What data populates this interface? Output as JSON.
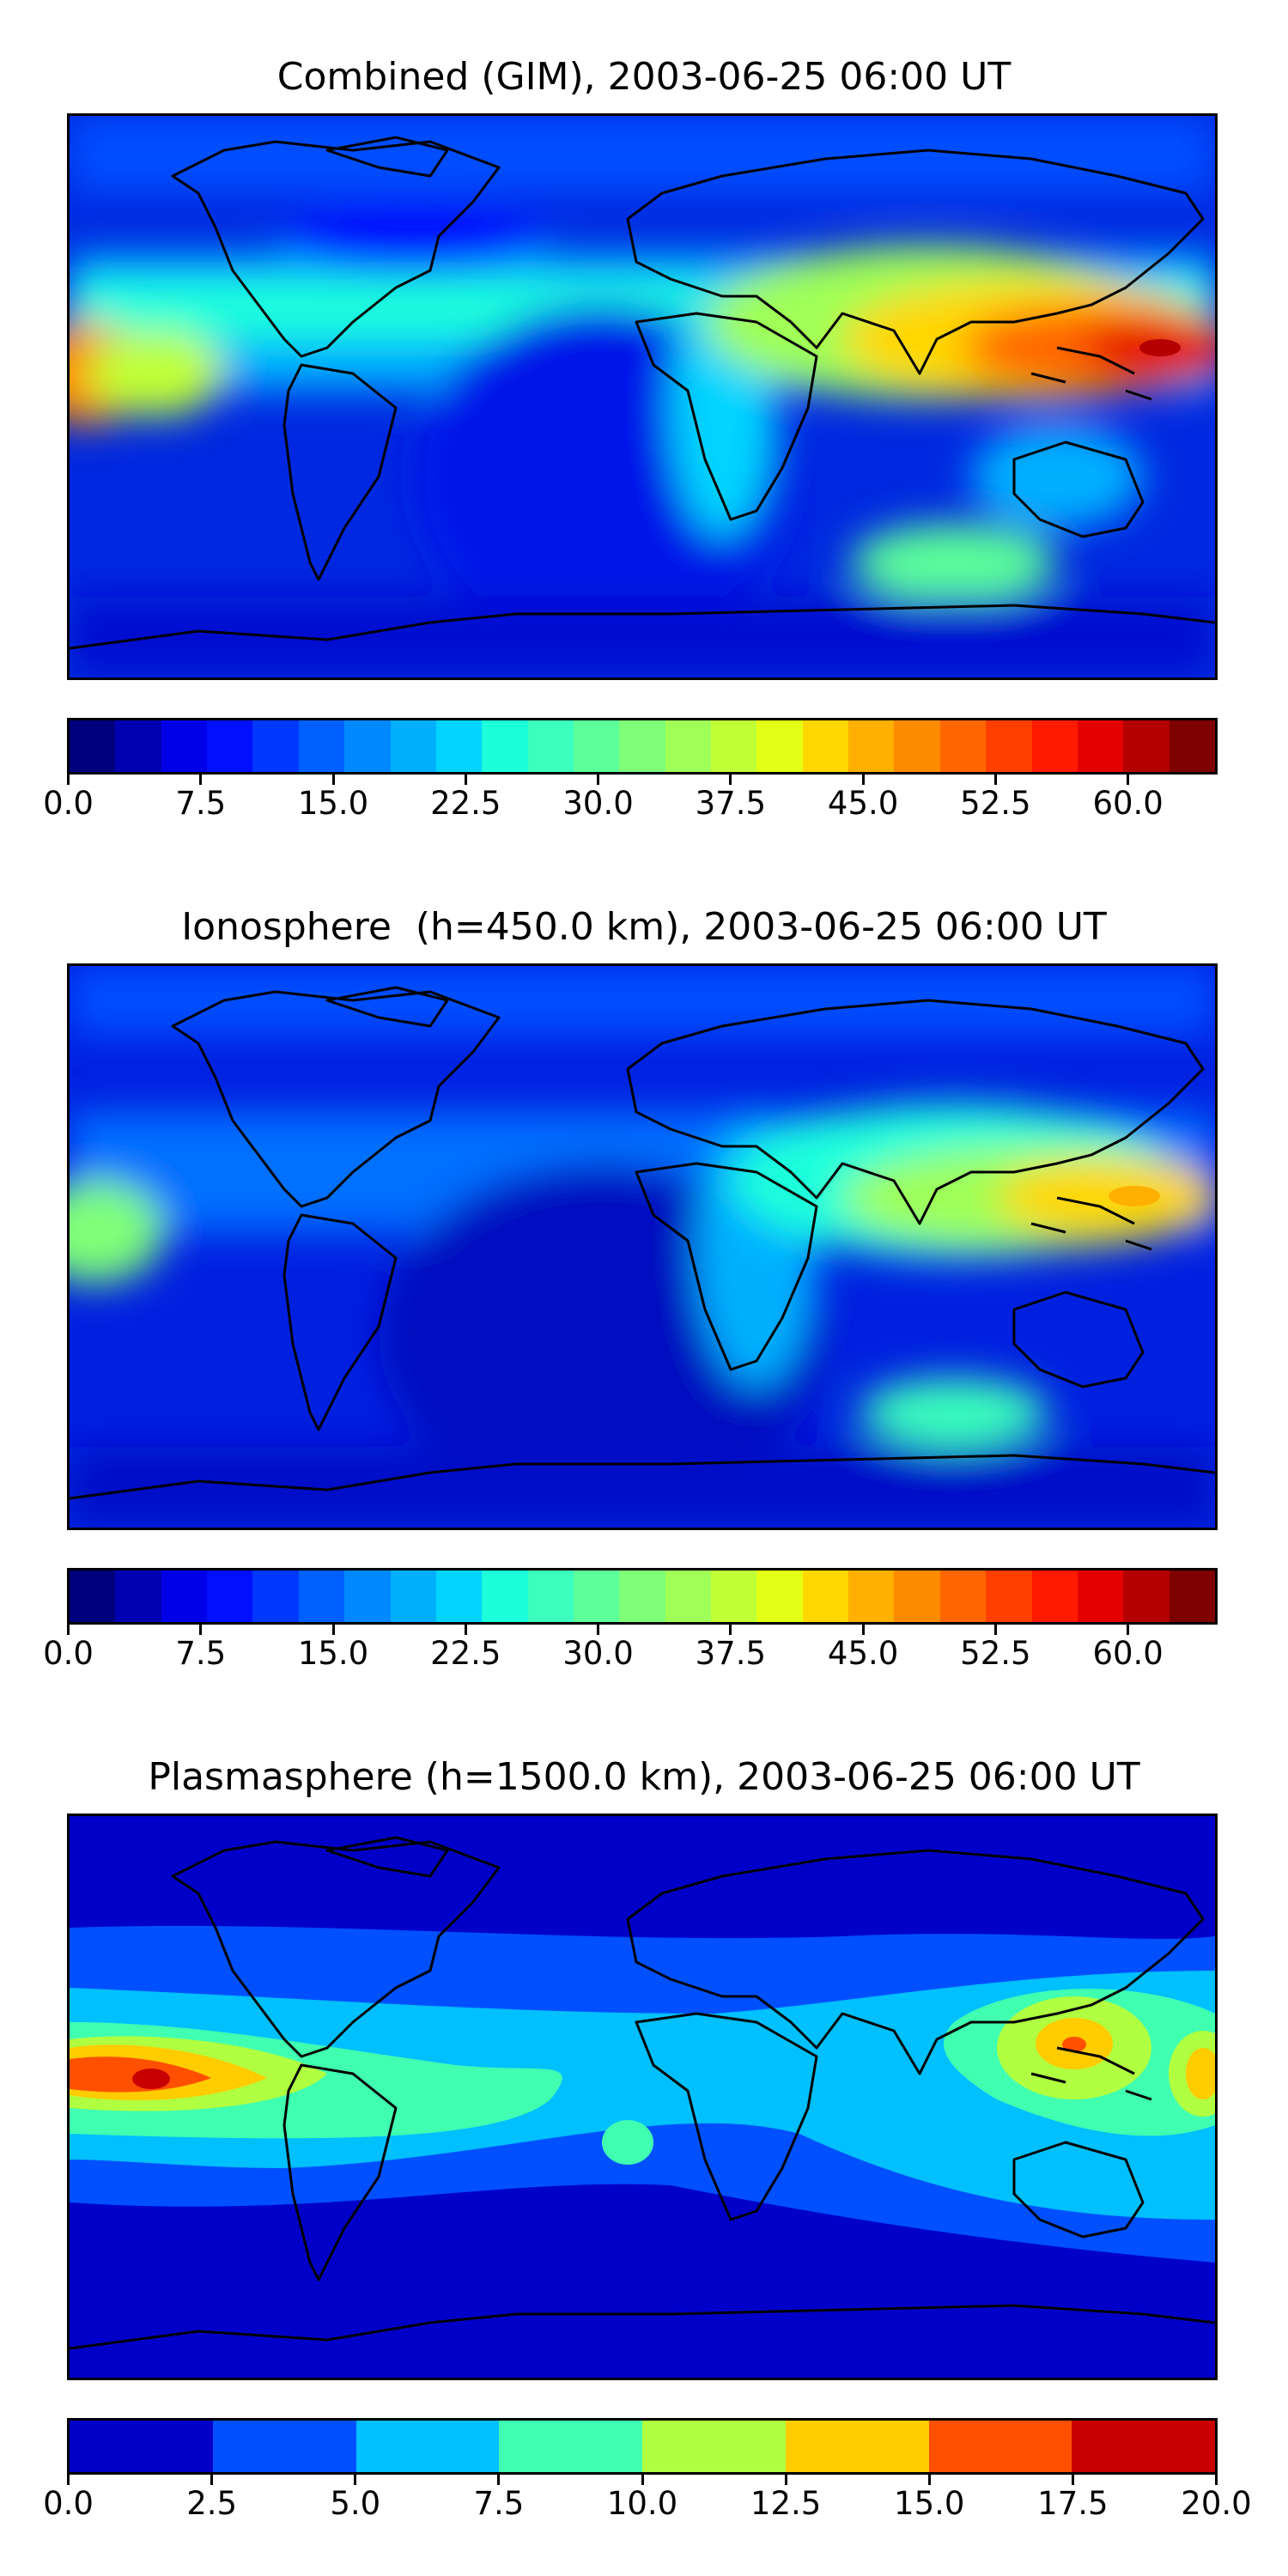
{
  "panels": [
    {
      "title": "Combined (GIM), 2003-06-25 06:00 UT",
      "colorbar": {
        "colors": [
          "#00007f",
          "#0000b0",
          "#0000e8",
          "#0010ff",
          "#0038ff",
          "#0060ff",
          "#0088ff",
          "#00b0ff",
          "#00d4ff",
          "#1cffdb",
          "#3bffbc",
          "#5cff9a",
          "#7fff78",
          "#9fff57",
          "#c0ff36",
          "#e2ff15",
          "#ffd700",
          "#ffb000",
          "#ff8c00",
          "#ff6600",
          "#ff3f00",
          "#ff1a00",
          "#e50000",
          "#b40000",
          "#7f0000"
        ],
        "ticks": [
          "0.0",
          "7.5",
          "15.0",
          "22.5",
          "30.0",
          "37.5",
          "45.0",
          "52.5",
          "60.0"
        ],
        "tick_values": [
          0,
          7.5,
          15,
          22.5,
          30,
          37.5,
          45,
          52.5,
          60
        ],
        "range": [
          0,
          65
        ]
      }
    },
    {
      "title": "Ionosphere  (h=450.0 km), 2003-06-25 06:00 UT",
      "colorbar": {
        "colors": [
          "#00007f",
          "#0000b0",
          "#0000e8",
          "#0010ff",
          "#0038ff",
          "#0060ff",
          "#0088ff",
          "#00b0ff",
          "#00d4ff",
          "#1cffdb",
          "#3bffbc",
          "#5cff9a",
          "#7fff78",
          "#9fff57",
          "#c0ff36",
          "#e2ff15",
          "#ffd700",
          "#ffb000",
          "#ff8c00",
          "#ff6600",
          "#ff3f00",
          "#ff1a00",
          "#e50000",
          "#b40000",
          "#7f0000"
        ],
        "ticks": [
          "0.0",
          "7.5",
          "15.0",
          "22.5",
          "30.0",
          "37.5",
          "45.0",
          "52.5",
          "60.0"
        ],
        "tick_values": [
          0,
          7.5,
          15,
          22.5,
          30,
          37.5,
          45,
          52.5,
          60
        ],
        "range": [
          0,
          65
        ]
      }
    },
    {
      "title": "Plasmasphere (h=1500.0 km), 2003-06-25 06:00 UT",
      "colorbar": {
        "colors": [
          "#0000c8",
          "#0050ff",
          "#00c0ff",
          "#40ffb0",
          "#b0ff40",
          "#ffcc00",
          "#ff5000",
          "#c80000"
        ],
        "ticks": [
          "0.0",
          "2.5",
          "5.0",
          "7.5",
          "10.0",
          "12.5",
          "15.0",
          "17.5",
          "20.0"
        ],
        "tick_values": [
          0,
          2.5,
          5,
          7.5,
          10,
          12.5,
          15,
          17.5,
          20
        ],
        "range": [
          0,
          20
        ]
      }
    }
  ]
}
